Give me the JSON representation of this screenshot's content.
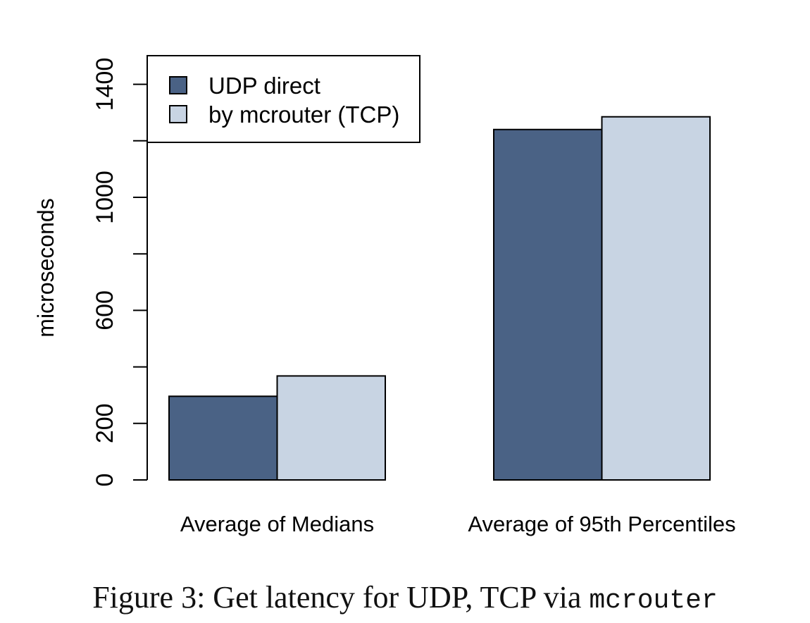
{
  "chart_data": {
    "type": "bar",
    "categories": [
      "Average of Medians",
      "Average of 95th Percentiles"
    ],
    "series": [
      {
        "name": "UDP direct",
        "values": [
          296,
          1240
        ],
        "color": "#4a6285"
      },
      {
        "name": "by mcrouter (TCP)",
        "values": [
          368,
          1285
        ],
        "color": "#c8d4e3"
      }
    ],
    "xlabel": "",
    "ylabel": "microseconds",
    "ylim": [
      0,
      1400
    ],
    "yticks": [
      0,
      200,
      400,
      600,
      800,
      1000,
      1200,
      1400
    ],
    "ytick_labels": [
      "0",
      "200",
      "",
      "600",
      "",
      "1000",
      "",
      "1400"
    ],
    "legend_position": "top-left",
    "grid": false
  },
  "caption": {
    "text": "Figure 3: Get latency for UDP, TCP via ",
    "code": "mcrouter"
  }
}
